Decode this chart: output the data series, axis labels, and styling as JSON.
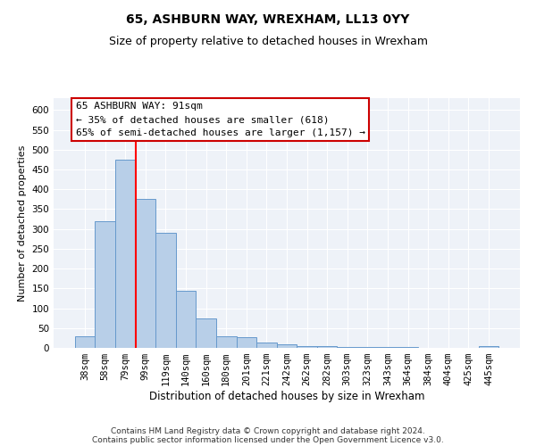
{
  "title": "65, ASHBURN WAY, WREXHAM, LL13 0YY",
  "subtitle": "Size of property relative to detached houses in Wrexham",
  "xlabel": "Distribution of detached houses by size in Wrexham",
  "ylabel": "Number of detached properties",
  "footer_line1": "Contains HM Land Registry data © Crown copyright and database right 2024.",
  "footer_line2": "Contains public sector information licensed under the Open Government Licence v3.0.",
  "categories": [
    "38sqm",
    "58sqm",
    "79sqm",
    "99sqm",
    "119sqm",
    "140sqm",
    "160sqm",
    "180sqm",
    "201sqm",
    "221sqm",
    "242sqm",
    "262sqm",
    "282sqm",
    "303sqm",
    "323sqm",
    "343sqm",
    "364sqm",
    "384sqm",
    "404sqm",
    "425sqm",
    "445sqm"
  ],
  "values": [
    30,
    320,
    475,
    375,
    290,
    143,
    75,
    30,
    28,
    13,
    8,
    5,
    4,
    3,
    3,
    3,
    2,
    1,
    1,
    0,
    5
  ],
  "bar_color": "#b8cfe8",
  "bar_edge_color": "#6699cc",
  "red_line_x": 2.5,
  "property_label": "65 ASHBURN WAY: 91sqm",
  "annotation_line1": "← 35% of detached houses are smaller (618)",
  "annotation_line2": "65% of semi-detached houses are larger (1,157) →",
  "ylim": [
    0,
    630
  ],
  "yticks": [
    0,
    50,
    100,
    150,
    200,
    250,
    300,
    350,
    400,
    450,
    500,
    550,
    600
  ],
  "box_edge_color": "#cc0000",
  "title_fontsize": 10,
  "subtitle_fontsize": 9,
  "tick_fontsize": 7.5,
  "ylabel_fontsize": 8,
  "xlabel_fontsize": 8.5,
  "annotation_fontsize": 8,
  "footer_fontsize": 6.5,
  "bg_color": "#eef2f8"
}
